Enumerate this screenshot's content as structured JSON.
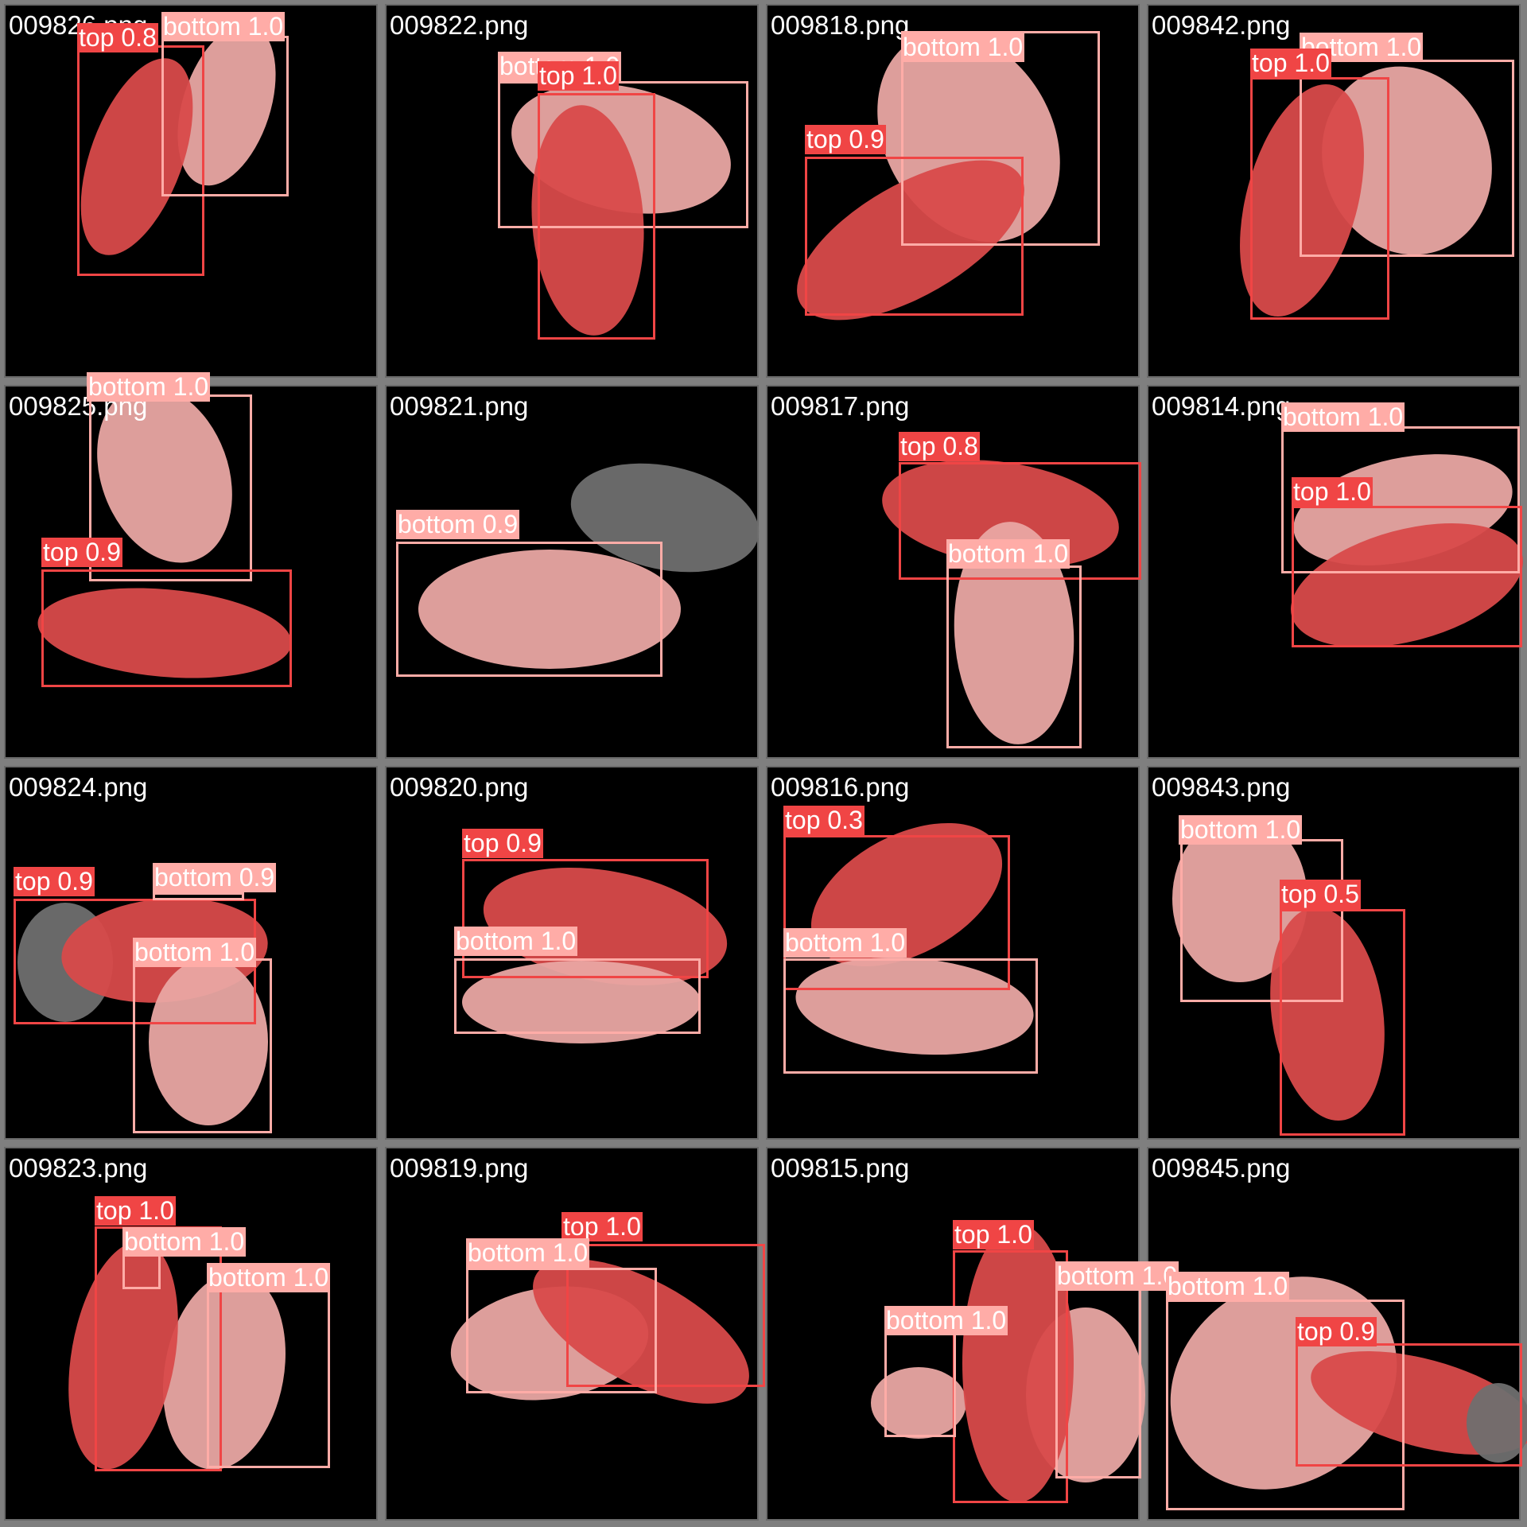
{
  "colors": {
    "background": "#7f7f7f",
    "top_box": "#f04545",
    "bottom_box": "#ffaca7",
    "top_mask": "#d84a4a",
    "bottom_mask": "#e9a7a3",
    "unmasked_mouse": "#6f6f6f",
    "label_text": "#ffffff",
    "filename_text": "#ffffff"
  },
  "grid": {
    "columns": 4,
    "rows": 4
  },
  "cells": [
    {
      "filename": "009826.png",
      "detections": [
        {
          "class": "top",
          "confidence": "0.8",
          "text": "top 0.8"
        },
        {
          "class": "bottom",
          "confidence": "1.0",
          "text": "bottom 1.0"
        }
      ]
    },
    {
      "filename": "009822.png",
      "detections": [
        {
          "class": "bottom",
          "confidence": "1.0",
          "text": "bottom 1.0"
        },
        {
          "class": "top",
          "confidence": "1.0",
          "text": "top 1.0"
        }
      ]
    },
    {
      "filename": "009818.png",
      "detections": [
        {
          "class": "bottom",
          "confidence": "1.0",
          "text": "bottom 1.0"
        },
        {
          "class": "top",
          "confidence": "0.9",
          "text": "top 0.9"
        }
      ]
    },
    {
      "filename": "009842.png",
      "detections": [
        {
          "class": "bottom",
          "confidence": "1.0",
          "text": "bottom 1.0"
        },
        {
          "class": "top",
          "confidence": "1.0",
          "text": "top 1.0"
        }
      ]
    },
    {
      "filename": "009825.png",
      "detections": [
        {
          "class": "bottom",
          "confidence": "1.0",
          "text": "bottom 1.0"
        },
        {
          "class": "top",
          "confidence": "0.9",
          "text": "top 0.9"
        }
      ]
    },
    {
      "filename": "009821.png",
      "detections": [
        {
          "class": "bottom",
          "confidence": "0.9",
          "text": "bottom 0.9"
        }
      ]
    },
    {
      "filename": "009817.png",
      "detections": [
        {
          "class": "top",
          "confidence": "0.8",
          "text": "top 0.8"
        },
        {
          "class": "bottom",
          "confidence": "1.0",
          "text": "bottom 1.0"
        }
      ]
    },
    {
      "filename": "009814.png",
      "detections": [
        {
          "class": "bottom",
          "confidence": "1.0",
          "text": "bottom 1.0"
        },
        {
          "class": "top",
          "confidence": "1.0",
          "text": "top 1.0"
        }
      ]
    },
    {
      "filename": "009824.png",
      "detections": [
        {
          "class": "top",
          "confidence": "0.9",
          "text": "top 0.9"
        },
        {
          "class": "bottom",
          "confidence": "0.9",
          "text": "bottom 0.9"
        },
        {
          "class": "bottom",
          "confidence": "1.0",
          "text": "bottom 1.0"
        }
      ]
    },
    {
      "filename": "009820.png",
      "detections": [
        {
          "class": "top",
          "confidence": "0.9",
          "text": "top 0.9"
        },
        {
          "class": "bottom",
          "confidence": "1.0",
          "text": "bottom 1.0"
        }
      ]
    },
    {
      "filename": "009816.png",
      "detections": [
        {
          "class": "top",
          "confidence": "0.3",
          "text": "top 0.3"
        },
        {
          "class": "bottom",
          "confidence": "1.0",
          "text": "bottom 1.0"
        }
      ]
    },
    {
      "filename": "009843.png",
      "detections": [
        {
          "class": "bottom",
          "confidence": "1.0",
          "text": "bottom 1.0"
        },
        {
          "class": "top",
          "confidence": "0.5",
          "text": "top 0.5"
        }
      ]
    },
    {
      "filename": "009823.png",
      "detections": [
        {
          "class": "top",
          "confidence": "1.0",
          "text": "top 1.0"
        },
        {
          "class": "bottom",
          "confidence": "1.0",
          "text": "bottom 1.0"
        },
        {
          "class": "bottom",
          "confidence": "1.0",
          "text": "bottom 1.0"
        }
      ]
    },
    {
      "filename": "009819.png",
      "detections": [
        {
          "class": "top",
          "confidence": "1.0",
          "text": "top 1.0"
        },
        {
          "class": "bottom",
          "confidence": "1.0",
          "text": "bottom 1.0"
        }
      ]
    },
    {
      "filename": "009815.png",
      "detections": [
        {
          "class": "top",
          "confidence": "1.0",
          "text": "top 1.0"
        },
        {
          "class": "bottom",
          "confidence": "1.0",
          "text": "bottom 1.0"
        },
        {
          "class": "bottom",
          "confidence": "1.0",
          "text": "bottom 1.0"
        }
      ]
    },
    {
      "filename": "009845.png",
      "detections": [
        {
          "class": "bottom",
          "confidence": "1.0",
          "text": "bottom 1.0"
        },
        {
          "class": "top",
          "confidence": "0.9",
          "text": "top 0.9"
        }
      ]
    }
  ]
}
